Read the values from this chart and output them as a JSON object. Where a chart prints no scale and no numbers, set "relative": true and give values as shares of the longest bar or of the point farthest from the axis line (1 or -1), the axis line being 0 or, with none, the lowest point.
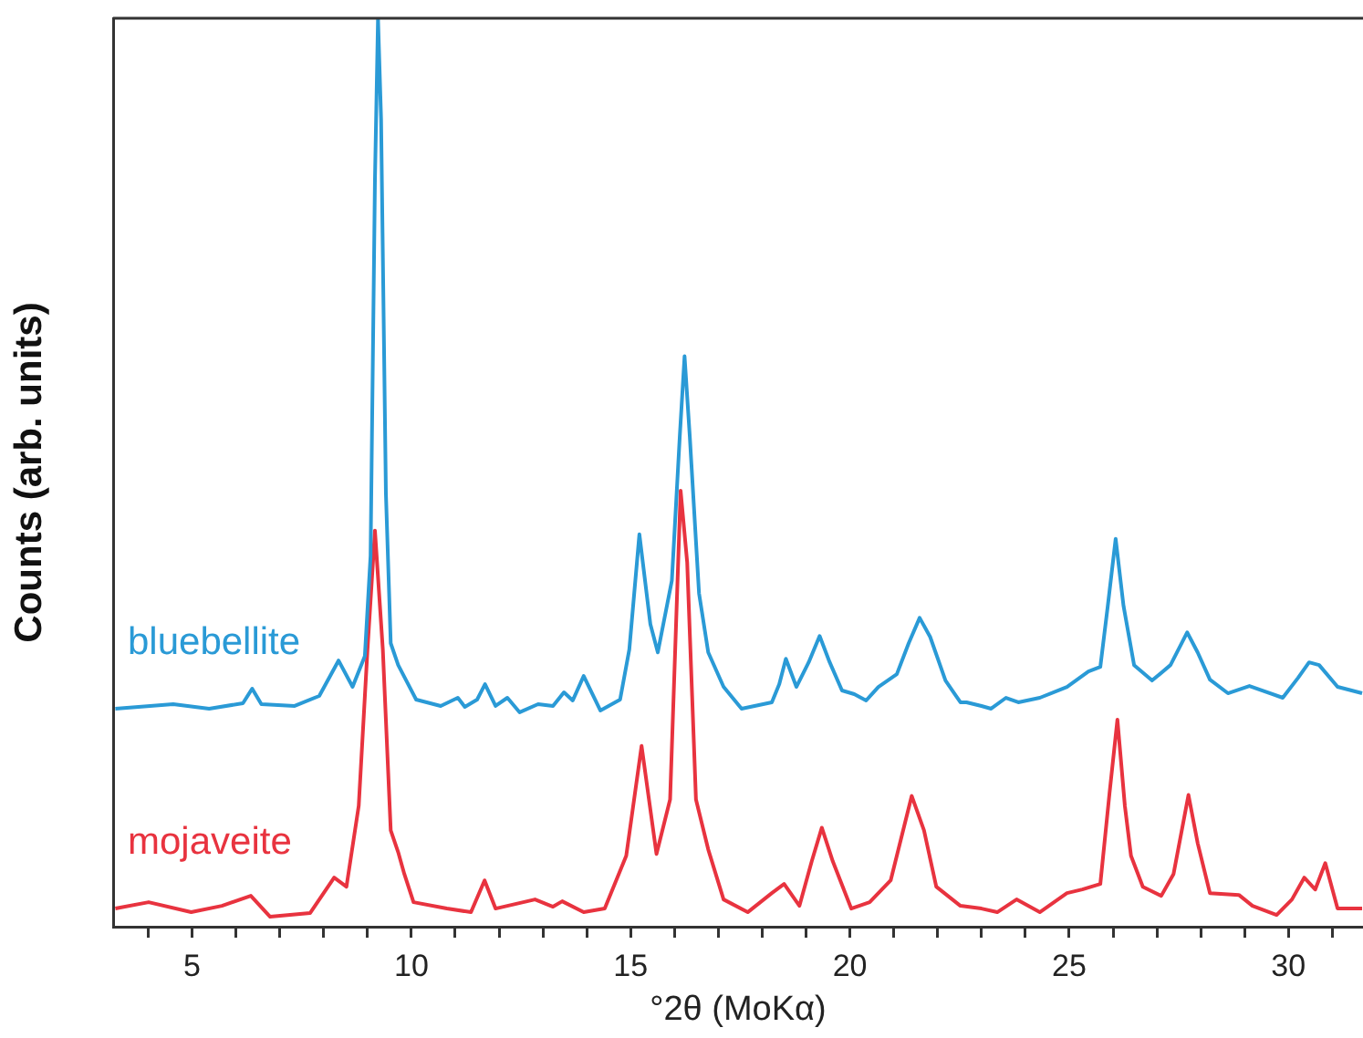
{
  "chart_data": {
    "type": "line",
    "xlabel": "°2θ (MoKα)",
    "ylabel": "Counts (arb. units)",
    "relative": true,
    "grid": false,
    "legend": false,
    "marker": "none",
    "line_style": "solid",
    "xlim": [
      3.2,
      31.7
    ],
    "xticks": [
      {
        "value": 4,
        "label": null
      },
      5,
      {
        "value": 6,
        "label": null
      },
      {
        "value": 7,
        "label": null
      },
      {
        "value": 8,
        "label": null
      },
      {
        "value": 9,
        "label": null
      },
      10,
      {
        "value": 11,
        "label": null
      },
      {
        "value": 12,
        "label": null
      },
      {
        "value": 13,
        "label": null
      },
      {
        "value": 14,
        "label": null
      },
      15,
      {
        "value": 16,
        "label": null
      },
      {
        "value": 17,
        "label": null
      },
      {
        "value": 18,
        "label": null
      },
      {
        "value": 19,
        "label": null
      },
      20,
      {
        "value": 21,
        "label": null
      },
      {
        "value": 22,
        "label": null
      },
      {
        "value": 23,
        "label": null
      },
      {
        "value": 24,
        "label": null
      },
      25,
      {
        "value": 26,
        "label": null
      },
      {
        "value": 27,
        "label": null
      },
      {
        "value": 28,
        "label": null
      },
      {
        "value": 29,
        "label": null
      },
      30,
      {
        "value": 31,
        "label": null
      }
    ],
    "series": [
      {
        "name": "bluebellite",
        "color": "#2a9ad6",
        "x": [
          3.25,
          4.57,
          5.39,
          6.16,
          6.37,
          6.58,
          7.34,
          7.9,
          8.34,
          8.66,
          8.94,
          9.07,
          9.17,
          9.24,
          9.31,
          9.42,
          9.53,
          9.7,
          10.11,
          10.67,
          11.06,
          11.22,
          11.5,
          11.68,
          11.92,
          12.19,
          12.47,
          12.89,
          13.23,
          13.48,
          13.68,
          13.93,
          14.31,
          14.76,
          14.97,
          15.2,
          15.45,
          15.62,
          15.94,
          16.12,
          16.23,
          16.35,
          16.56,
          16.77,
          17.12,
          17.53,
          18.22,
          18.39,
          18.54,
          18.78,
          19.06,
          19.31,
          19.54,
          19.82,
          20.1,
          20.37,
          20.65,
          21.07,
          21.34,
          21.59,
          21.83,
          22.18,
          22.52,
          22.66,
          23.0,
          23.22,
          23.56,
          23.84,
          24.33,
          24.95,
          25.44,
          25.71,
          25.88,
          26.06,
          26.24,
          26.48,
          26.89,
          27.31,
          27.69,
          27.93,
          28.21,
          28.62,
          29.11,
          29.87,
          30.22,
          30.47,
          30.7,
          31.12,
          31.68
        ],
        "values": [
          0.24,
          0.245,
          0.24,
          0.246,
          0.262,
          0.245,
          0.243,
          0.254,
          0.293,
          0.264,
          0.298,
          0.408,
          0.821,
          1.0,
          0.889,
          0.477,
          0.312,
          0.288,
          0.25,
          0.243,
          0.252,
          0.242,
          0.25,
          0.267,
          0.243,
          0.252,
          0.236,
          0.245,
          0.243,
          0.258,
          0.249,
          0.276,
          0.238,
          0.25,
          0.305,
          0.432,
          0.333,
          0.302,
          0.381,
          0.539,
          0.628,
          0.539,
          0.367,
          0.302,
          0.264,
          0.24,
          0.247,
          0.267,
          0.295,
          0.264,
          0.291,
          0.32,
          0.291,
          0.26,
          0.256,
          0.249,
          0.264,
          0.278,
          0.312,
          0.34,
          0.319,
          0.271,
          0.247,
          0.247,
          0.243,
          0.24,
          0.252,
          0.247,
          0.252,
          0.264,
          0.281,
          0.286,
          0.353,
          0.427,
          0.353,
          0.288,
          0.271,
          0.288,
          0.324,
          0.302,
          0.272,
          0.257,
          0.265,
          0.252,
          0.274,
          0.291,
          0.288,
          0.264,
          0.257
        ]
      },
      {
        "name": "mojaveite",
        "color": "#e8333f",
        "x": [
          3.25,
          4.01,
          4.98,
          5.68,
          6.34,
          6.78,
          7.69,
          8.24,
          8.52,
          8.8,
          9.0,
          9.17,
          9.35,
          9.53,
          9.7,
          9.84,
          10.05,
          10.81,
          11.36,
          11.67,
          11.92,
          12.82,
          13.23,
          13.44,
          13.93,
          14.41,
          14.9,
          15.25,
          15.59,
          15.9,
          16.14,
          16.29,
          16.49,
          16.77,
          17.12,
          17.67,
          18.22,
          18.5,
          18.85,
          19.13,
          19.36,
          19.61,
          20.03,
          20.45,
          20.93,
          21.41,
          21.69,
          21.97,
          22.52,
          23.0,
          23.36,
          23.8,
          24.33,
          24.95,
          25.3,
          25.71,
          25.92,
          26.1,
          26.27,
          26.41,
          26.68,
          27.1,
          27.38,
          27.72,
          27.93,
          28.21,
          28.87,
          29.18,
          29.73,
          30.08,
          30.36,
          30.61,
          30.84,
          31.12,
          31.68
        ],
        "values": [
          0.02,
          0.027,
          0.016,
          0.023,
          0.034,
          0.011,
          0.015,
          0.054,
          0.044,
          0.133,
          0.305,
          0.436,
          0.305,
          0.106,
          0.082,
          0.058,
          0.027,
          0.02,
          0.016,
          0.051,
          0.02,
          0.03,
          0.022,
          0.028,
          0.016,
          0.02,
          0.078,
          0.199,
          0.08,
          0.14,
          0.48,
          0.401,
          0.14,
          0.085,
          0.03,
          0.016,
          0.037,
          0.047,
          0.023,
          0.072,
          0.109,
          0.072,
          0.02,
          0.027,
          0.051,
          0.144,
          0.106,
          0.044,
          0.023,
          0.02,
          0.016,
          0.03,
          0.016,
          0.037,
          0.041,
          0.047,
          0.147,
          0.228,
          0.133,
          0.078,
          0.044,
          0.034,
          0.058,
          0.145,
          0.092,
          0.037,
          0.035,
          0.023,
          0.013,
          0.03,
          0.054,
          0.041,
          0.07,
          0.02,
          0.02
        ]
      }
    ]
  }
}
